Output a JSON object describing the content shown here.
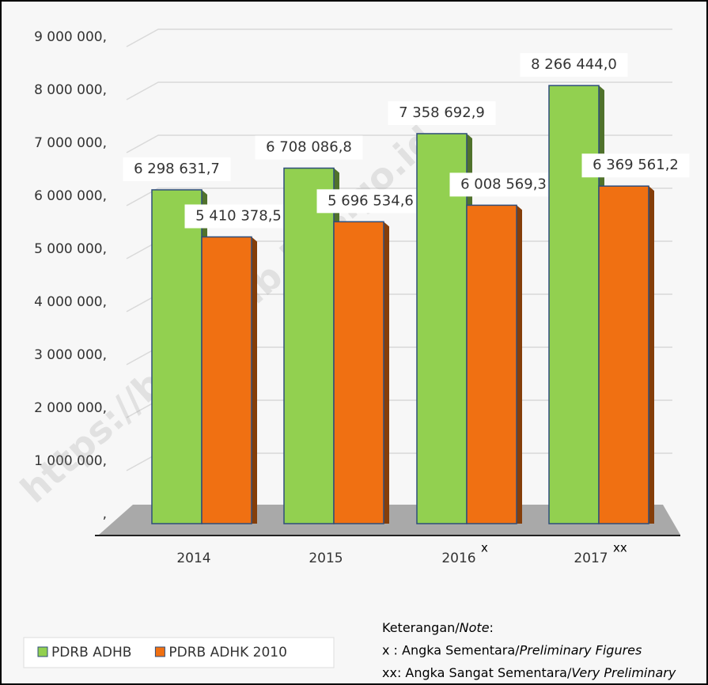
{
  "chart_data": {
    "type": "bar",
    "categories": [
      "2014",
      "2015",
      "2016",
      "2017"
    ],
    "category_superscripts": [
      null,
      null,
      "x",
      "xx"
    ],
    "series": [
      {
        "name": "PDRB ADHB",
        "color": "#92d050",
        "values": [
          6298631.7,
          6708086.8,
          7358692.9,
          8266444.0
        ],
        "value_labels": [
          "6 298 631,7",
          "6 708 086,8",
          "7 358 692,9",
          "8 266 444,0"
        ]
      },
      {
        "name": "PDRB ADHK 2010",
        "color": "#f07012",
        "values": [
          5410378.5,
          5696534.6,
          6008569.3,
          6369561.2
        ],
        "value_labels": [
          "5 410 378,5",
          "5 696 534,6",
          "6 008 569,3",
          "6 369 561,2"
        ]
      }
    ],
    "ylim": [
      0,
      9000000
    ],
    "yticks": [
      {
        "value": 0,
        "label": ","
      },
      {
        "value": 1000000,
        "label": "1 000 000,"
      },
      {
        "value": 2000000,
        "label": "2 000 000,"
      },
      {
        "value": 3000000,
        "label": "3 000 000,"
      },
      {
        "value": 4000000,
        "label": "4 000 000,"
      },
      {
        "value": 5000000,
        "label": "5 000 000,"
      },
      {
        "value": 6000000,
        "label": "6 000 000,"
      },
      {
        "value": 7000000,
        "label": "7 000 000,"
      },
      {
        "value": 8000000,
        "label": "8 000 000,"
      },
      {
        "value": 9000000,
        "label": "9 000 000,"
      }
    ],
    "grid": true,
    "legend": "bottom-left",
    "notes": [
      [
        "Keterangan/",
        "Note",
        ":"
      ],
      [
        " x : Angka Sementara/",
        "Preliminary Figures"
      ],
      [
        "xx: Angka Sangat Sementara/",
        "Very Preliminary"
      ]
    ],
    "watermark": "https://barutkab.bps.go.id"
  }
}
